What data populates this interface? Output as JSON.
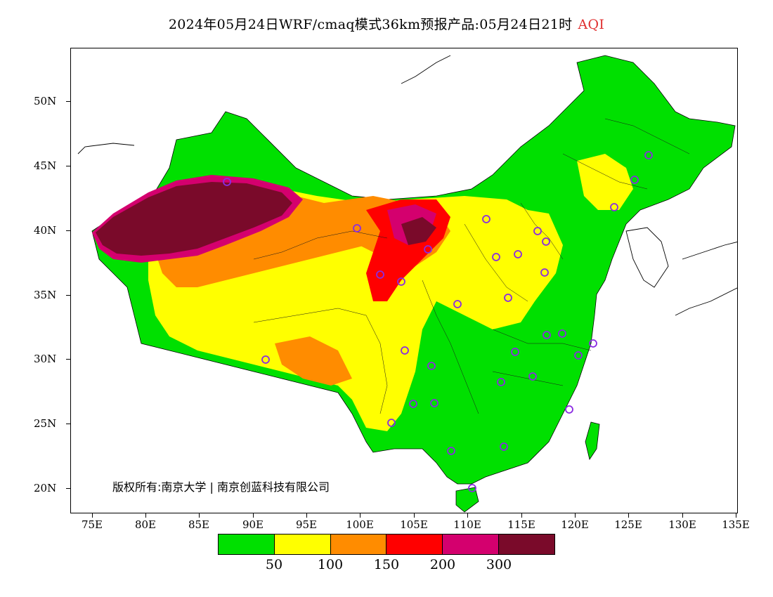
{
  "title": {
    "main": "2024年05月24日WRF/cmaq模式36km预报产品:05月24日21时",
    "product": "AQI"
  },
  "axes": {
    "y_labels": [
      "50N",
      "45N",
      "40N",
      "35N",
      "30N",
      "25N",
      "20N"
    ],
    "x_labels": [
      "75E",
      "80E",
      "85E",
      "90E",
      "95E",
      "100E",
      "105E",
      "110E",
      "115E",
      "120E",
      "125E",
      "130E",
      "135E"
    ]
  },
  "copyright": "版权所有:南京大学 | 南京创蓝科技有限公司",
  "legend": {
    "colors": [
      "#00e000",
      "#ffff00",
      "#ff8c00",
      "#ff0000",
      "#d4006e",
      "#7a0a2a"
    ],
    "labels": [
      "50",
      "100",
      "150",
      "200",
      "300"
    ]
  },
  "colors": {
    "good": "#00e000",
    "moderate": "#ffff00",
    "sensitive": "#ff8c00",
    "unhealthy": "#ff0000",
    "very_unhealthy": "#d4006e",
    "hazardous": "#7a0a2a",
    "station_marker": "#8a2be2"
  }
}
